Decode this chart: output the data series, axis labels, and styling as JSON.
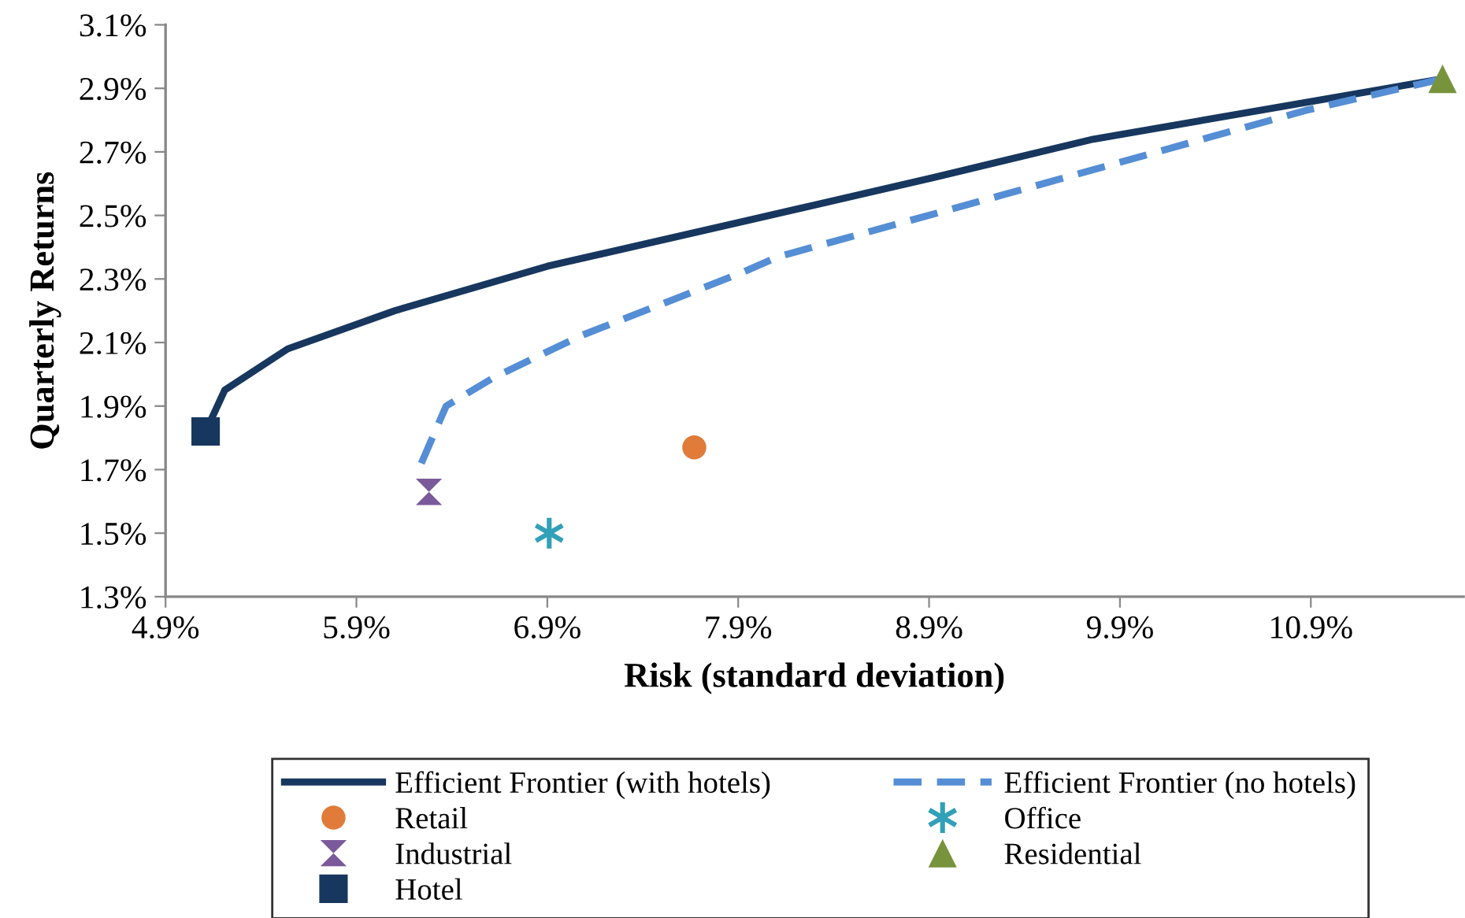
{
  "chart_data": {
    "type": "line",
    "xlabel": "Risk (standard deviation)",
    "ylabel": "Quarterly Returns",
    "xlim": [
      4.9,
      11.7
    ],
    "ylim": [
      1.3,
      3.1
    ],
    "xticks": [
      {
        "value": 4.9,
        "label": "4.9%"
      },
      {
        "value": 5.9,
        "label": "5.9%"
      },
      {
        "value": 6.9,
        "label": "6.9%"
      },
      {
        "value": 7.9,
        "label": "7.9%"
      },
      {
        "value": 8.9,
        "label": "8.9%"
      },
      {
        "value": 9.9,
        "label": "9.9%"
      },
      {
        "value": 10.9,
        "label": "10.9%"
      }
    ],
    "yticks": [
      {
        "value": 1.3,
        "label": "1.3%"
      },
      {
        "value": 1.5,
        "label": "1.5%"
      },
      {
        "value": 1.7,
        "label": "1.7%"
      },
      {
        "value": 1.9,
        "label": "1.9%"
      },
      {
        "value": 2.1,
        "label": "2.1%"
      },
      {
        "value": 2.3,
        "label": "2.3%"
      },
      {
        "value": 2.5,
        "label": "2.5%"
      },
      {
        "value": 2.7,
        "label": "2.7%"
      },
      {
        "value": 2.9,
        "label": "2.9%"
      },
      {
        "value": 3.1,
        "label": "3.1%"
      }
    ],
    "grid": false,
    "legend": "bottom",
    "series": [
      {
        "name": "Efficient Frontier (with hotels)",
        "color": "#17375e",
        "line_style": "solid",
        "marker": "none",
        "x": [
          5.11,
          5.21,
          5.54,
          6.1,
          6.9,
          7.92,
          8.93,
          9.76,
          11.59
        ],
        "values": [
          1.82,
          1.95,
          2.08,
          2.2,
          2.34,
          2.48,
          2.62,
          2.74,
          2.93
        ]
      },
      {
        "name": "Efficient Frontier (no hotels)",
        "color": "#558ed5",
        "line_style": "dashed",
        "marker": "none",
        "x": [
          6.24,
          6.37,
          6.62,
          7.07,
          7.92,
          8.11,
          9.38,
          10.87,
          11.59
        ],
        "values": [
          1.72,
          1.9,
          1.99,
          2.12,
          2.32,
          2.37,
          2.58,
          2.83,
          2.93
        ]
      },
      {
        "name": "Retail",
        "type": "scatter",
        "color": "#e07b39",
        "marker": "circle",
        "x": [
          7.67
        ],
        "values": [
          1.77
        ]
      },
      {
        "name": "Office",
        "type": "scatter",
        "color": "#31a0b8",
        "marker": "cross",
        "x": [
          6.91
        ],
        "values": [
          1.5
        ]
      },
      {
        "name": "Industrial",
        "type": "scatter",
        "color": "#7a5a9a",
        "x": [
          6.28
        ],
        "values": [
          1.63
        ]
      },
      {
        "name": "Residential",
        "type": "scatter",
        "color": "#77933c",
        "marker": "triangle",
        "x": [
          11.59
        ],
        "values": [
          2.93
        ]
      },
      {
        "name": "Hotel",
        "type": "scatter",
        "color": "#17375e",
        "marker": "square",
        "x": [
          5.11
        ],
        "values": [
          1.82
        ]
      }
    ]
  }
}
